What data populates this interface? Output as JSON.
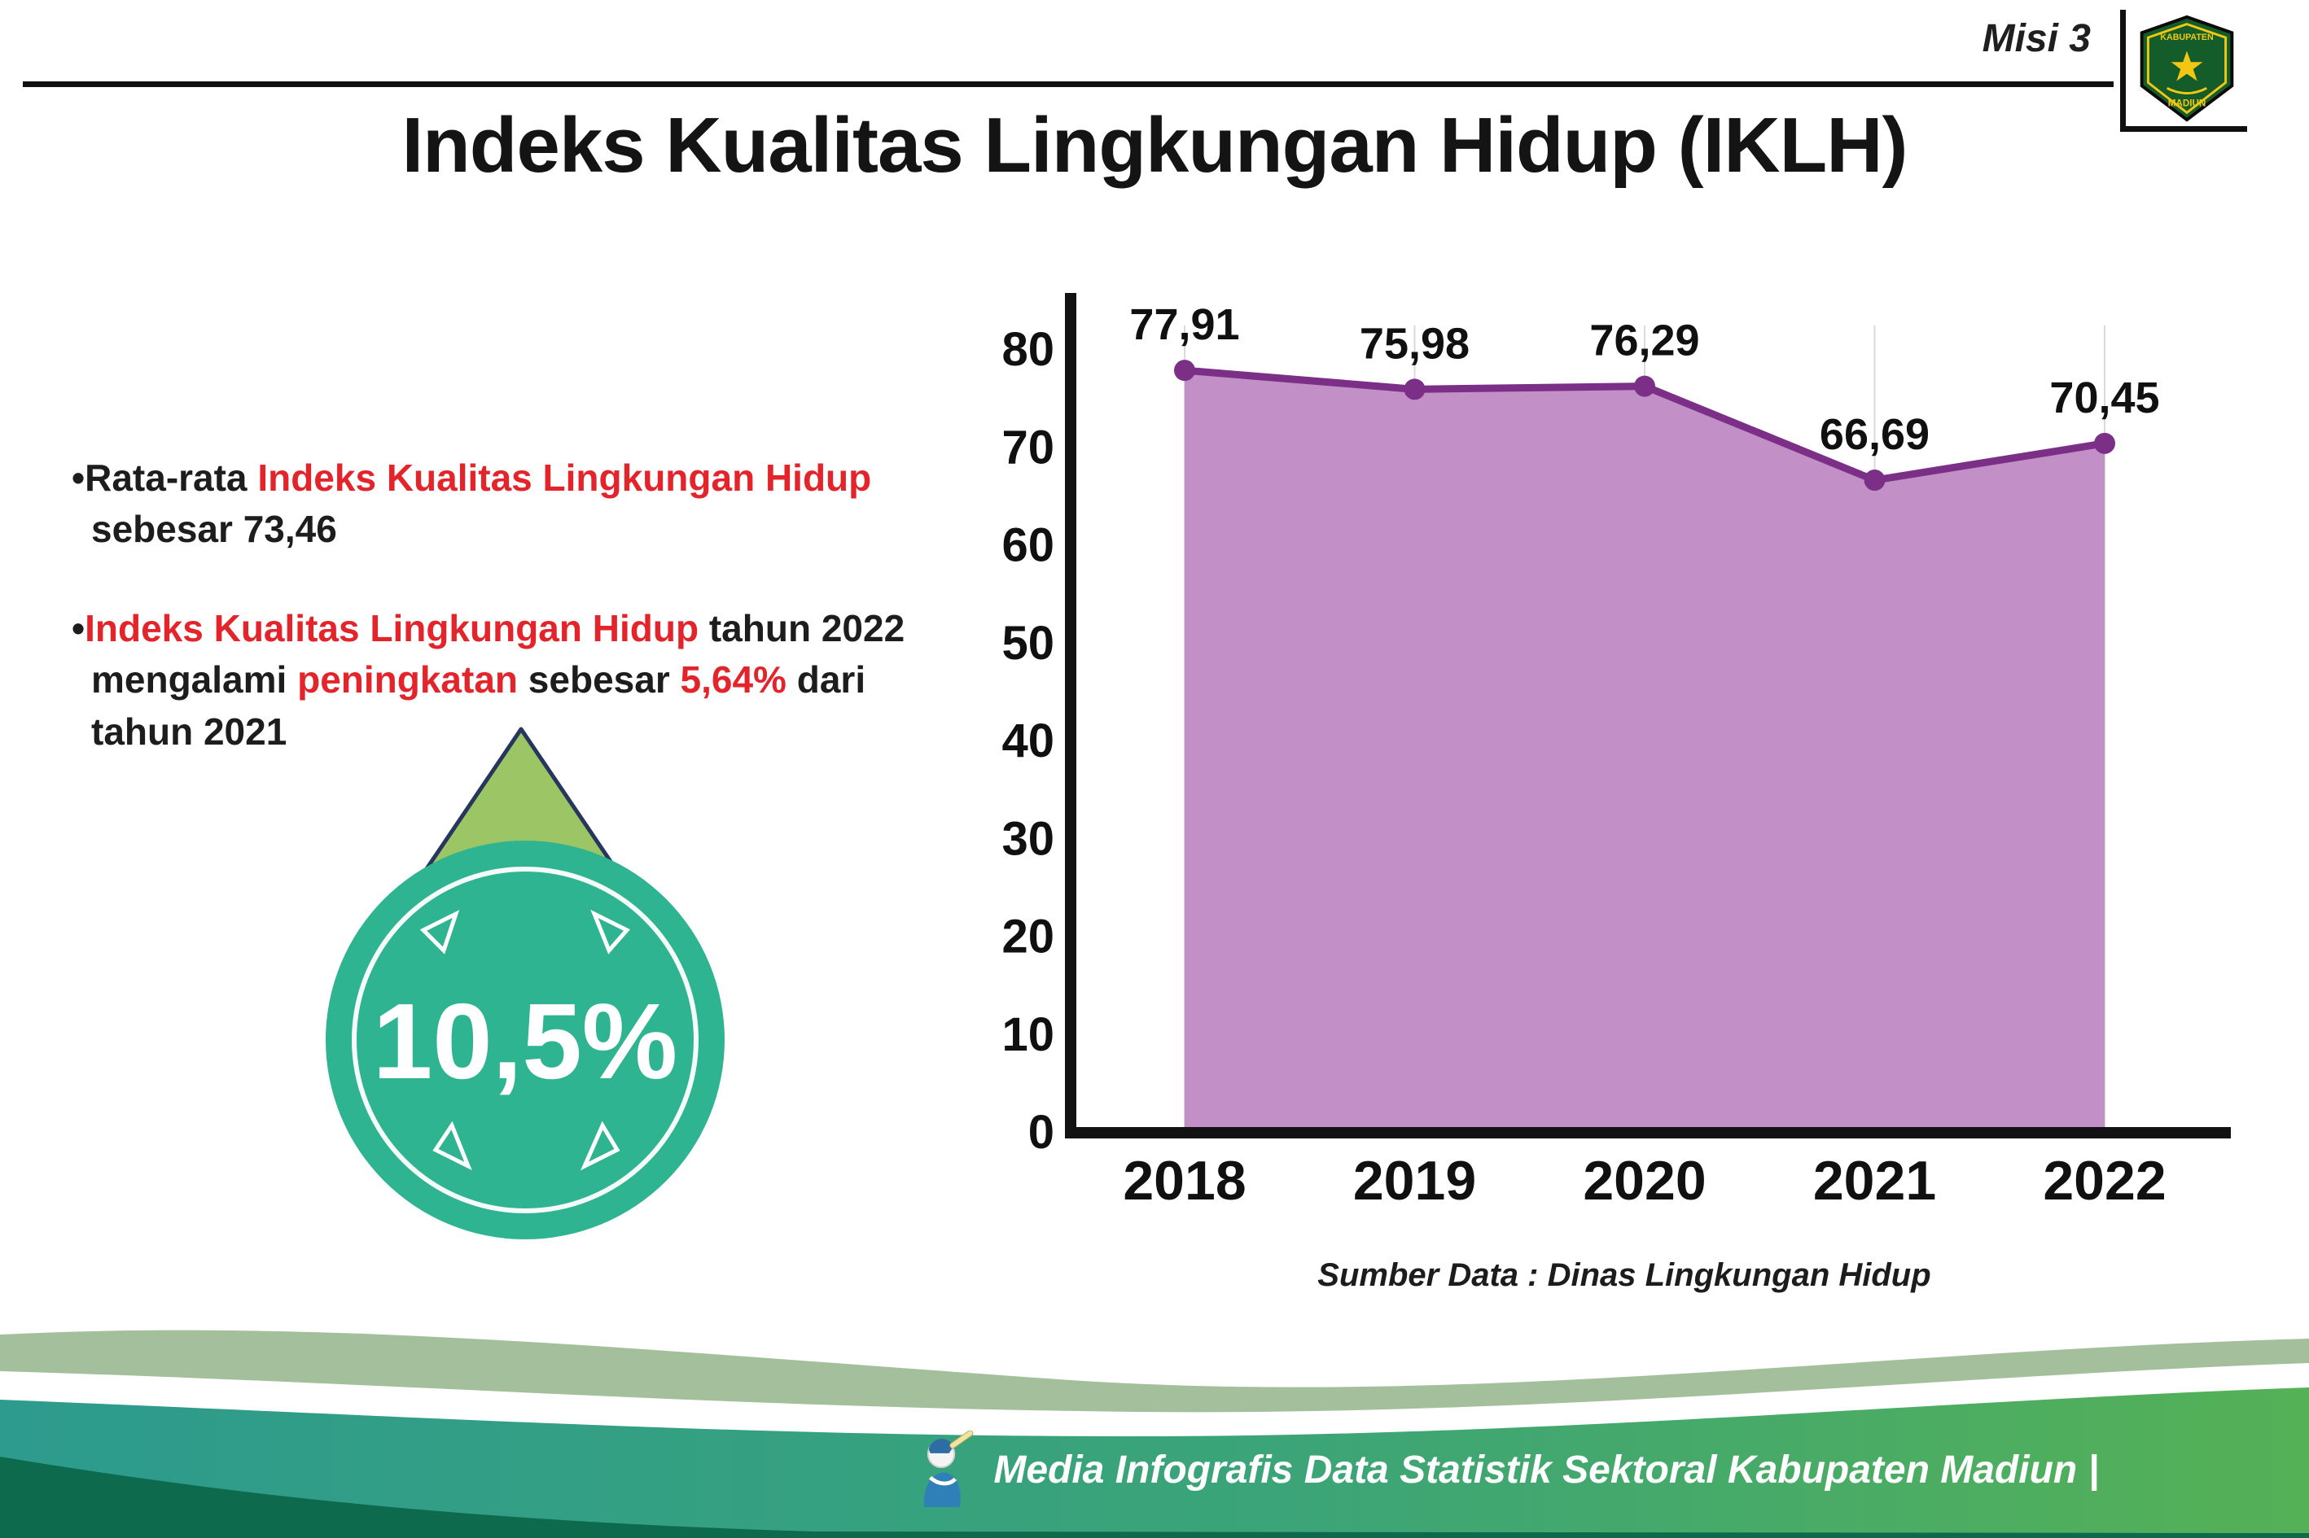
{
  "header": {
    "misi_label": "Misi 3",
    "title": "Indeks Kualitas Lingkungan Hidup (IKLH)"
  },
  "logo": {
    "top_text": "KABUPATEN",
    "bottom_text": "MADIUN"
  },
  "bullets": {
    "marker": "•",
    "b1": {
      "s0": "Rata-rata ",
      "s1": "Indeks Kualitas Lingkungan Hidup",
      "s2": " sebesar 73,46"
    },
    "b2": {
      "s0": "Indeks Kualitas Lingkungan Hidup",
      "s1": " tahun 2022 mengalami ",
      "s2": "peningkatan",
      "s3": " sebesar ",
      "s4": "5,64%",
      "s5": " dari tahun 2021"
    }
  },
  "badge": {
    "value": "10,5%",
    "circle_color": "#2eb491",
    "arrow_color": "#9cc566"
  },
  "chart_data": {
    "type": "area",
    "title": "Indeks Kualitas Lingkungan Hidup (IKLH)",
    "categories": [
      "2018",
      "2019",
      "2020",
      "2021",
      "2022"
    ],
    "values": [
      77.91,
      75.98,
      76.29,
      66.69,
      70.45
    ],
    "value_labels": [
      "77,91",
      "75,98",
      "76,29",
      "66,69",
      "70,45"
    ],
    "xlabel": "",
    "ylabel": "",
    "ylim": [
      0,
      80
    ],
    "ytick_step": 10,
    "grid": "vertical-light",
    "legend": "none",
    "fill_color": "#c38fc7",
    "line_color": "#7b2f87",
    "source": "Sumber Data : Dinas Lingkungan Hidup"
  },
  "footer": {
    "text": "Media Infografis Data Statistik Sektoral Kabupaten Madiun |"
  }
}
